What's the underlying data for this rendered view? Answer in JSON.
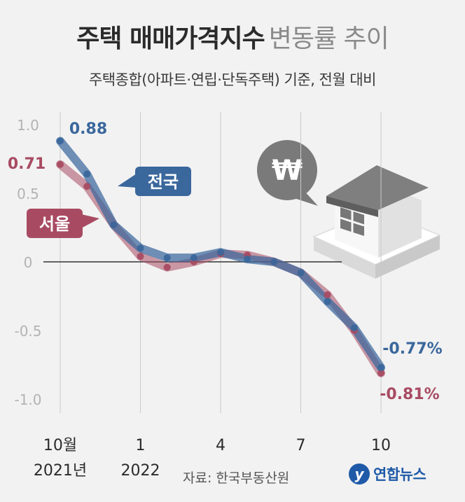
{
  "title": "주택 매매가격지수",
  "title_suffix": "변동률 추이",
  "subtitle": "주택종합(아파트·연립·단독주택) 기준, 전월 대비",
  "source": "자료: 한국부동산원",
  "logo": {
    "text": "연합뉴스",
    "mark": "y"
  },
  "icon": {
    "name": "won-coin-bubble",
    "symbol": "₩"
  },
  "chart_data": {
    "type": "line",
    "x": [
      "2021-10",
      "2021-11",
      "2021-12",
      "2022-01",
      "2022-02",
      "2022-03",
      "2022-04",
      "2022-05",
      "2022-06",
      "2022-07",
      "2022-08",
      "2022-09",
      "2022-10"
    ],
    "x_tick_labels": [
      {
        "index": 0,
        "line1": "10월",
        "line2": "2021년"
      },
      {
        "index": 3,
        "line1": "1",
        "line2": "2022"
      },
      {
        "index": 6,
        "line1": "4",
        "line2": ""
      },
      {
        "index": 9,
        "line1": "7",
        "line2": ""
      },
      {
        "index": 12,
        "line1": "10",
        "line2": ""
      }
    ],
    "y_ticks": [
      {
        "value": 1.0,
        "label": "1.0"
      },
      {
        "value": 0.5,
        "label": "0.5"
      },
      {
        "value": 0,
        "label": "0"
      },
      {
        "value": -0.5,
        "label": "-0.5"
      },
      {
        "value": -1.0,
        "label": "-1.0"
      }
    ],
    "ylim": [
      -1.0,
      1.0
    ],
    "series": [
      {
        "name": "서울",
        "color": "#a84b62",
        "values": [
          0.71,
          0.55,
          0.27,
          0.04,
          -0.04,
          0.0,
          0.06,
          0.05,
          0.0,
          -0.08,
          -0.24,
          -0.5,
          -0.81
        ],
        "first_label": "0.71",
        "last_label": "-0.81%"
      },
      {
        "name": "전국",
        "color": "#3a679c",
        "values": [
          0.88,
          0.64,
          0.27,
          0.1,
          0.03,
          0.03,
          0.07,
          0.02,
          0.0,
          -0.08,
          -0.29,
          -0.48,
          -0.77
        ],
        "first_label": "0.88",
        "last_label": "-0.77%"
      }
    ]
  }
}
